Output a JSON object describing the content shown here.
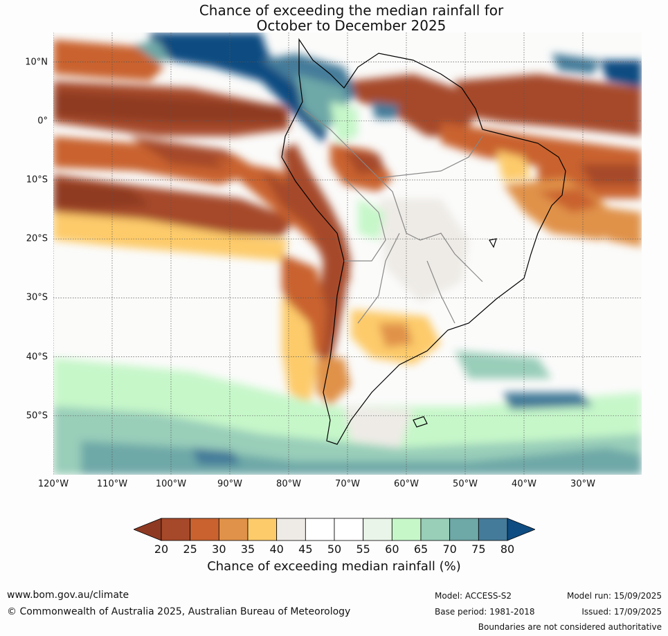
{
  "title": {
    "line1": "Chance of exceeding the median rainfall for",
    "line2": "October to December 2025"
  },
  "map": {
    "lat_labels": [
      "10°N",
      "0°",
      "10°S",
      "20°S",
      "30°S",
      "40°S",
      "50°S"
    ],
    "lon_labels": [
      "120°W",
      "110°W",
      "100°W",
      "90°W",
      "80°W",
      "70°W",
      "60°W",
      "50°W",
      "40°W",
      "30°W"
    ],
    "extent": {
      "lon_min": -120,
      "lon_max": -20,
      "lat_min": -60,
      "lat_max": 15
    },
    "regions": [
      {
        "name": "tropical-north-pacific",
        "category": 80
      },
      {
        "name": "equatorial-east-pacific",
        "category": 20
      },
      {
        "name": "southeast-pacific-band",
        "category": 25
      },
      {
        "name": "peru-chile-coast",
        "category": 25
      },
      {
        "name": "northern-amazon-guianas",
        "category": 25
      },
      {
        "name": "equatorial-atlantic",
        "category": 25
      },
      {
        "name": "eastern-brazil",
        "category": 30
      },
      {
        "name": "patagonia-east",
        "category": 35
      },
      {
        "name": "southern-ocean",
        "category": 70
      }
    ]
  },
  "colorbar": {
    "ticks": [
      "20",
      "25",
      "30",
      "35",
      "40",
      "45",
      "50",
      "55",
      "60",
      "65",
      "70",
      "75",
      "80"
    ],
    "colors": [
      "#a6482a",
      "#c9622f",
      "#e0924a",
      "#fdcb6a",
      "#eeebe6",
      "#ffffff",
      "#ffffff",
      "#e9f5e8",
      "#c6f7c9",
      "#99ceb9",
      "#6ea8a7",
      "#457b9a",
      "#0f4c81"
    ],
    "below_color": "#8e3a22",
    "above_color": "#0f4c81",
    "label": "Chance of exceeding median rainfall (%)"
  },
  "footer": {
    "website": "www.bom.gov.au/climate",
    "copyright": "© Commonwealth of Australia 2025, Australian Bureau of Meteorology",
    "model": "Model: ACCESS-S2",
    "base_period": "Base period: 1981-2018",
    "model_run": "Model run: 15/09/2025",
    "issued": "Issued: 17/09/2025",
    "disclaimer": "Boundaries are not considered authoritative"
  }
}
